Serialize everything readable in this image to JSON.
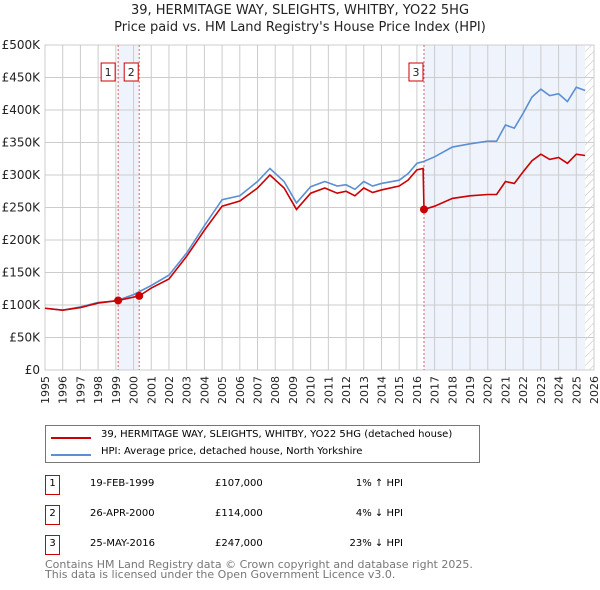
{
  "title": "39, HERMITAGE WAY, SLEIGHTS, WHITBY, YO22 5HG",
  "subtitle": "Price paid vs. HM Land Registry's House Price Index (HPI)",
  "chart_data": {
    "type": "line",
    "xlim": [
      1995,
      2026
    ],
    "ylim": [
      0,
      500000
    ],
    "yticks": [
      {
        "v": 0,
        "l": "£0"
      },
      {
        "v": 50000,
        "l": "£50K"
      },
      {
        "v": 100000,
        "l": "£100K"
      },
      {
        "v": 150000,
        "l": "£150K"
      },
      {
        "v": 200000,
        "l": "£200K"
      },
      {
        "v": 250000,
        "l": "£250K"
      },
      {
        "v": 300000,
        "l": "£300K"
      },
      {
        "v": 350000,
        "l": "£350K"
      },
      {
        "v": 400000,
        "l": "£400K"
      },
      {
        "v": 450000,
        "l": "£450K"
      },
      {
        "v": 500000,
        "l": "£500K"
      }
    ],
    "xticks": [
      1995,
      1996,
      1997,
      1998,
      1999,
      2000,
      2001,
      2002,
      2003,
      2004,
      2005,
      2006,
      2007,
      2008,
      2009,
      2010,
      2011,
      2012,
      2013,
      2014,
      2015,
      2016,
      2017,
      2018,
      2019,
      2020,
      2021,
      2022,
      2023,
      2024,
      2025,
      2026
    ],
    "series": [
      {
        "name": "39, HERMITAGE WAY, SLEIGHTS, WHITBY, YO22 5HG (detached house)",
        "color": "#cc0000",
        "x": [
          1995,
          1996,
          1997,
          1998,
          1999.13,
          2000.32,
          2001,
          2002,
          2003,
          2004,
          2005,
          2006,
          2007,
          2007.7,
          2008.5,
          2009.2,
          2010,
          2010.8,
          2011.5,
          2012,
          2012.5,
          2013,
          2013.5,
          2014,
          2015,
          2015.5,
          2016,
          2016.35,
          2016.4,
          2017,
          2018,
          2019,
          2020,
          2020.5,
          2021,
          2021.5,
          2022,
          2022.5,
          2023,
          2023.5,
          2024,
          2024.5,
          2025,
          2025.5
        ],
        "y": [
          95000,
          92000,
          96000,
          103000,
          107000,
          114000,
          126000,
          140000,
          175000,
          215000,
          252000,
          260000,
          280000,
          300000,
          280000,
          247000,
          272000,
          280000,
          272000,
          275000,
          268000,
          280000,
          273000,
          277000,
          283000,
          292000,
          308000,
          310000,
          247000,
          252000,
          264000,
          268000,
          270000,
          270000,
          290000,
          287000,
          305000,
          322000,
          332000,
          324000,
          327000,
          318000,
          332000,
          330000
        ]
      },
      {
        "name": "HPI: Average price, detached house, North Yorkshire",
        "color": "#5b8fd4",
        "x": [
          1995,
          1996,
          1997,
          1998,
          1999,
          2000,
          2001,
          2002,
          2003,
          2004,
          2005,
          2006,
          2007,
          2007.7,
          2008.5,
          2009.2,
          2010,
          2010.8,
          2011.5,
          2012,
          2012.5,
          2013,
          2013.5,
          2014,
          2015,
          2015.5,
          2016,
          2016.4,
          2017,
          2018,
          2019,
          2020,
          2020.5,
          2021,
          2021.5,
          2022,
          2022.5,
          2023,
          2023.5,
          2024,
          2024.5,
          2025,
          2025.5
        ],
        "y": [
          95000,
          92000,
          97000,
          104000,
          106000,
          116000,
          130000,
          146000,
          180000,
          222000,
          262000,
          268000,
          290000,
          310000,
          290000,
          257000,
          282000,
          290000,
          283000,
          285000,
          278000,
          290000,
          283000,
          287000,
          292000,
          302000,
          318000,
          321000,
          328000,
          343000,
          348000,
          352000,
          352000,
          377000,
          372000,
          395000,
          420000,
          432000,
          422000,
          425000,
          413000,
          435000,
          430000
        ]
      }
    ],
    "sales": [
      {
        "n": "1",
        "x": 1999.13,
        "y": 107000
      },
      {
        "n": "2",
        "x": 2000.32,
        "y": 114000
      },
      {
        "n": "3",
        "x": 2016.4,
        "y": 247000
      }
    ],
    "data_end": 2025.5
  },
  "legend": [
    "39, HERMITAGE WAY, SLEIGHTS, WHITBY, YO22 5HG (detached house)",
    "HPI: Average price, detached house, North Yorkshire"
  ],
  "transactions": [
    {
      "n": "1",
      "date": "19-FEB-1999",
      "price": "£107,000",
      "hpi": "1% ↑ HPI"
    },
    {
      "n": "2",
      "date": "26-APR-2000",
      "price": "£114,000",
      "hpi": "4% ↓ HPI"
    },
    {
      "n": "3",
      "date": "25-MAY-2016",
      "price": "£247,000",
      "hpi": "23% ↓ HPI"
    }
  ],
  "footer": [
    "Contains HM Land Registry data © Crown copyright and database right 2025.",
    "This data is licensed under the Open Government Licence v3.0."
  ]
}
